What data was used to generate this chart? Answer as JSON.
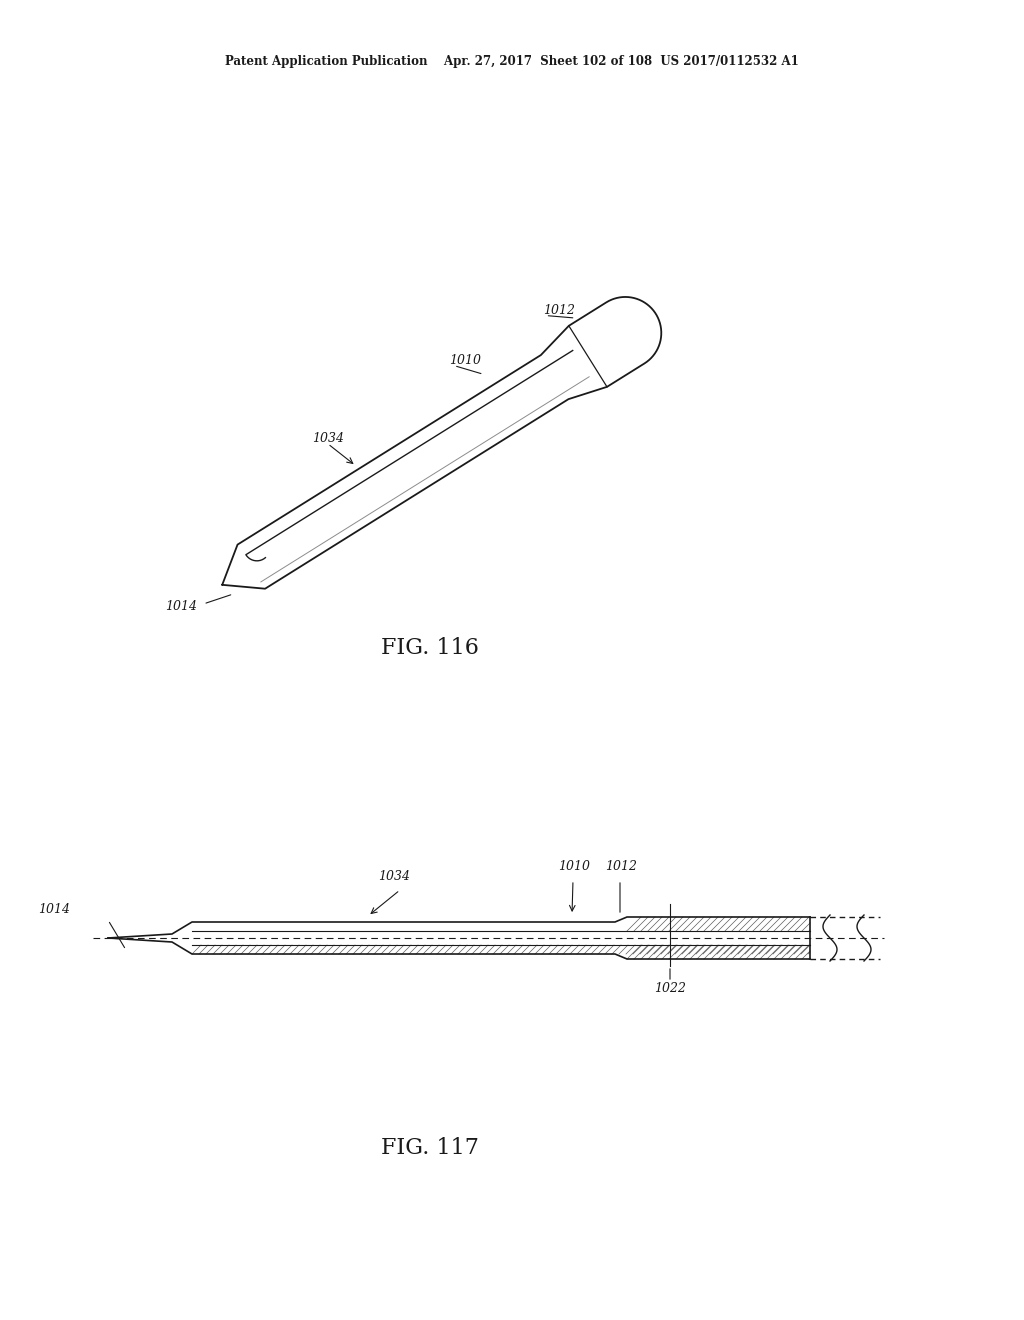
{
  "bg_color": "#ffffff",
  "header_text": "Patent Application Publication    Apr. 27, 2017  Sheet 102 of 108  US 2017/0112532 A1",
  "fig116_label": "FIG. 116",
  "fig117_label": "FIG. 117",
  "labels": {
    "1010_116": "1010",
    "1012_116": "1012",
    "1034_116": "1034",
    "1014_116": "1014",
    "1010_117": "1010",
    "1012_117": "1012",
    "1034_117": "1034",
    "1014_117": "1014",
    "1022_117": "1022"
  },
  "line_color": "#1a1a1a",
  "text_color": "#1a1a1a"
}
